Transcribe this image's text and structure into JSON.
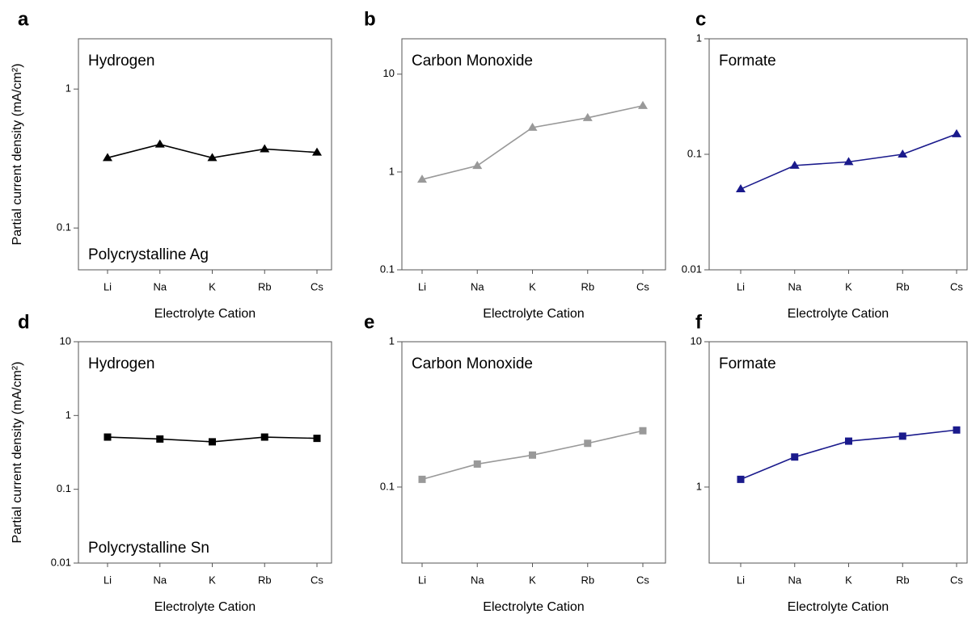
{
  "chart_data": [
    {
      "type": "line",
      "label": "a",
      "title": "Hydrogen",
      "annotation": "Polycrystalline Ag",
      "y_label": "Partial current density (mA/cm²)",
      "x_label": "Electrolyte Cation",
      "categories": [
        "Li",
        "Na",
        "K",
        "Rb",
        "Cs"
      ],
      "series": [
        {
          "color": "#000000",
          "marker": "triangle",
          "values": [
            0.32,
            0.4,
            0.32,
            0.37,
            0.35
          ]
        }
      ],
      "log_y": true,
      "ylim": [
        0.05,
        2.3
      ],
      "yticks": [
        0.1,
        1
      ]
    },
    {
      "type": "line",
      "label": "b",
      "title": "Carbon Monoxide",
      "x_label": "Electrolyte Cation",
      "categories": [
        "Li",
        "Na",
        "K",
        "Rb",
        "Cs"
      ],
      "series": [
        {
          "color": "#999999",
          "marker": "triangle",
          "values": [
            0.84,
            1.16,
            2.85,
            3.58,
            4.76
          ]
        }
      ],
      "log_y": true,
      "ylim": [
        0.1,
        23
      ],
      "yticks": [
        0.1,
        1,
        10
      ]
    },
    {
      "type": "line",
      "label": "c",
      "title": "Formate",
      "x_label": "Electrolyte Cation",
      "categories": [
        "Li",
        "Na",
        "K",
        "Rb",
        "Cs"
      ],
      "series": [
        {
          "color": "#1a1a8c",
          "marker": "triangle",
          "values": [
            0.05,
            0.08,
            0.086,
            0.1,
            0.15
          ]
        }
      ],
      "log_y": true,
      "ylim": [
        0.01,
        1
      ],
      "yticks": [
        0.01,
        0.1,
        1
      ]
    },
    {
      "type": "line",
      "label": "d",
      "title": "Hydrogen",
      "annotation": "Polycrystalline Sn",
      "y_label": "Partial current density (mA/cm²)",
      "x_label": "Electrolyte Cation",
      "categories": [
        "Li",
        "Na",
        "K",
        "Rb",
        "Cs"
      ],
      "series": [
        {
          "color": "#000000",
          "marker": "square",
          "values": [
            0.51,
            0.48,
            0.44,
            0.51,
            0.49
          ]
        }
      ],
      "log_y": true,
      "ylim": [
        0.01,
        10
      ],
      "yticks": [
        0.01,
        0.1,
        1,
        10
      ]
    },
    {
      "type": "line",
      "label": "e",
      "title": "Carbon Monoxide",
      "x_label": "Electrolyte Cation",
      "categories": [
        "Li",
        "Na",
        "K",
        "Rb",
        "Cs"
      ],
      "series": [
        {
          "color": "#999999",
          "marker": "square",
          "values": [
            0.113,
            0.144,
            0.166,
            0.2,
            0.244
          ]
        }
      ],
      "log_y": true,
      "ylim": [
        0.03,
        1
      ],
      "yticks": [
        0.1,
        1
      ]
    },
    {
      "type": "line",
      "label": "f",
      "title": "Formate",
      "x_label": "Electrolyte Cation",
      "categories": [
        "Li",
        "Na",
        "K",
        "Rb",
        "Cs"
      ],
      "series": [
        {
          "color": "#1a1a8c",
          "marker": "square",
          "values": [
            1.13,
            1.61,
            2.07,
            2.24,
            2.47
          ]
        }
      ],
      "log_y": true,
      "ylim": [
        0.3,
        10
      ],
      "yticks": [
        1,
        10
      ]
    }
  ]
}
